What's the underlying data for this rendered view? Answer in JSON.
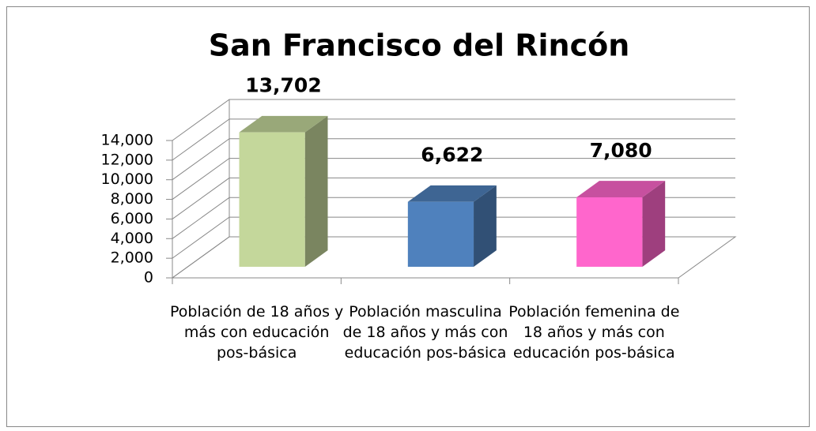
{
  "chart_data": {
    "type": "bar3d",
    "title": "San Francisco del Rincón",
    "categories": [
      "Población de 18 años y más con educación pos-básica",
      "Población masculina de 18 años y más con educación pos-básica",
      "Población femenina de 18 años y más con educación pos-básica"
    ],
    "values": [
      13702,
      6622,
      7080
    ],
    "value_labels": [
      "13,702",
      "6,622",
      "7,080"
    ],
    "colors": [
      "#c4d79b",
      "#4f81bd",
      "#ff66cc"
    ],
    "ylim": [
      0,
      14000
    ],
    "yticks": [
      0,
      {
        "value": 2000,
        "label": "2,000"
      },
      {
        "value": 4000,
        "label": "4,000"
      },
      {
        "value": 6000,
        "label": "6,000"
      },
      {
        "value": 8000,
        "label": "8,000"
      },
      {
        "value": 10000,
        "label": "10,000"
      },
      {
        "value": 12000,
        "label": "12,000"
      },
      {
        "value": 14000,
        "label": "14,000"
      }
    ],
    "grid": true
  }
}
